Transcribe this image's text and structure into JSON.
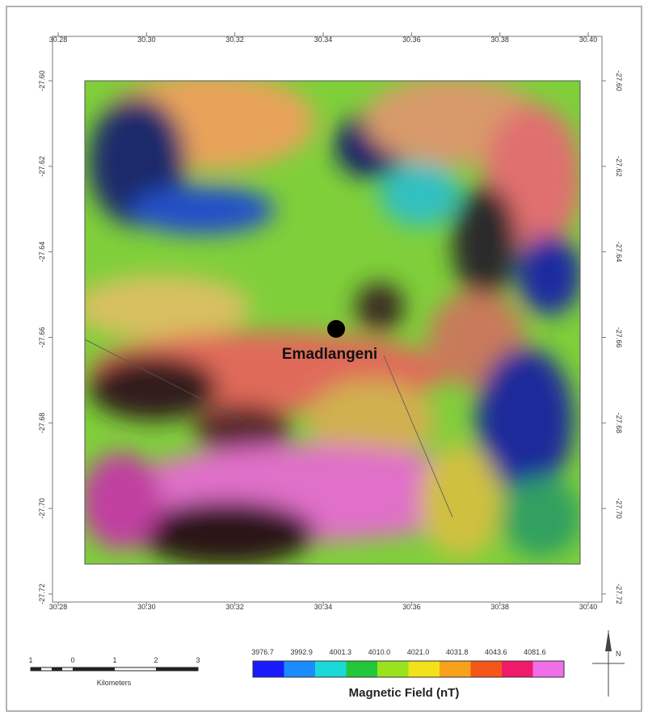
{
  "map": {
    "x_ticks": [
      "30.28",
      "30.30",
      "30.32",
      "30.34",
      "30.36",
      "30.38",
      "30.40"
    ],
    "y_ticks": [
      "-27.60",
      "-27.62",
      "-27.64",
      "-27.66",
      "-27.68",
      "-27.70",
      "-27.72"
    ],
    "place_label": "Emadlangeni"
  },
  "scale_bar": {
    "labels": [
      "1",
      "0",
      "1",
      "2",
      "3"
    ],
    "unit": "Kilometers"
  },
  "legend": {
    "title": "Magnetic Field (nT)",
    "labels": [
      "3976.7",
      "3992.9",
      "4001.3",
      "4010.0",
      "4021.0",
      "4031.8",
      "4043.6",
      "4081.6"
    ],
    "colors": [
      "#1a1aff",
      "#1a8cff",
      "#1ad9d9",
      "#22c83a",
      "#9be21e",
      "#f2e21a",
      "#f7a21a",
      "#f4561a",
      "#f01a6a",
      "#f06ee8"
    ]
  },
  "north_arrow": "N"
}
